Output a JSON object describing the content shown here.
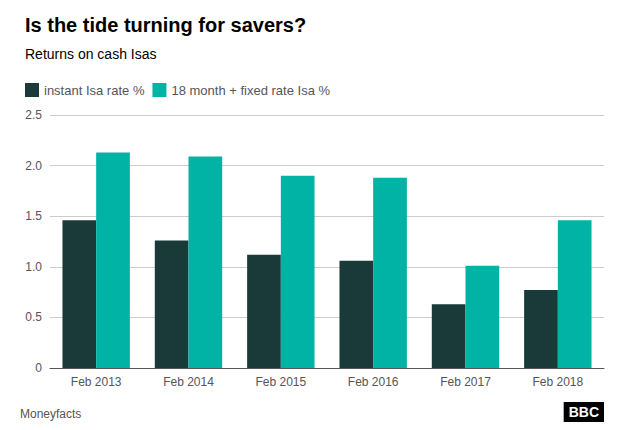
{
  "chart_data": {
    "type": "bar",
    "title": "Is the tide turning for savers?",
    "subtitle": "Returns on cash Isas",
    "categories": [
      "Feb 2013",
      "Feb 2014",
      "Feb 2015",
      "Feb 2016",
      "Feb 2017",
      "Feb 2018"
    ],
    "series": [
      {
        "name": "instant Isa rate %",
        "color": "#1a3a3a",
        "values": [
          1.46,
          1.26,
          1.12,
          1.06,
          0.63,
          0.77
        ]
      },
      {
        "name": "18 month + fixed rate Isa %",
        "color": "#00b3a4",
        "values": [
          2.13,
          2.09,
          1.9,
          1.88,
          1.01,
          1.46
        ]
      }
    ],
    "ylim": [
      0,
      2.5
    ],
    "yticks": [
      0,
      0.5,
      {
        "value": 1,
        "label": "1.0"
      },
      1.5,
      {
        "value": 2,
        "label": "2.0"
      },
      2.5
    ],
    "grid": true,
    "legend": "upper left",
    "annotations": [
      "Moneyfacts",
      "BBC"
    ]
  }
}
